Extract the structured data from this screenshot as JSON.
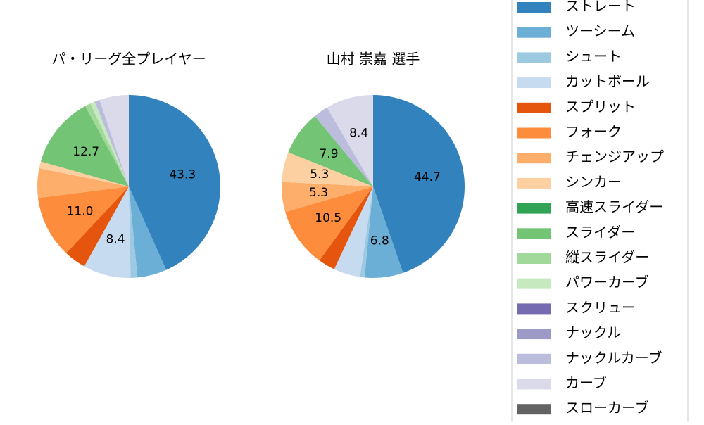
{
  "chart_data": [
    {
      "type": "pie",
      "title": "パ・リーグ全プレイヤー",
      "categories": [
        "ストレート",
        "ツーシーム",
        "シュート",
        "カットボール",
        "スプリット",
        "フォーク",
        "チェンジアップ",
        "シンカー",
        "高速スライダー",
        "スライダー",
        "縦スライダー",
        "パワーカーブ",
        "スクリュー",
        "ナックル",
        "ナックルカーブ",
        "カーブ",
        "スローカーブ"
      ],
      "colors": [
        "#3182bd",
        "#6baed6",
        "#9ecae1",
        "#c6dbef",
        "#e6550d",
        "#fd8d3c",
        "#fdae6b",
        "#fdd0a2",
        "#31a354",
        "#74c476",
        "#a1d99b",
        "#c7e9c0",
        "#756bb1",
        "#9e9ac8",
        "#bcbddc",
        "#dadaeb",
        "#636363"
      ],
      "values": [
        43.3,
        5.2,
        1.2,
        8.4,
        3.9,
        11.0,
        5.2,
        1.2,
        0,
        12.7,
        1.0,
        0.8,
        0,
        0,
        0.9,
        5.2,
        0
      ],
      "value_labels": [
        "43.3",
        null,
        null,
        "8.4",
        null,
        "11.0",
        null,
        null,
        null,
        "12.7",
        null,
        null,
        null,
        null,
        null,
        null,
        null
      ]
    },
    {
      "type": "pie",
      "title": "山村 崇嘉  選手",
      "categories": [
        "ストレート",
        "ツーシーム",
        "シュート",
        "カットボール",
        "スプリット",
        "フォーク",
        "チェンジアップ",
        "シンカー",
        "高速スライダー",
        "スライダー",
        "縦スライダー",
        "パワーカーブ",
        "スクリュー",
        "ナックル",
        "ナックルカーブ",
        "カーブ",
        "スローカーブ"
      ],
      "colors": [
        "#3182bd",
        "#6baed6",
        "#9ecae1",
        "#c6dbef",
        "#e6550d",
        "#fd8d3c",
        "#fdae6b",
        "#fdd0a2",
        "#31a354",
        "#74c476",
        "#a1d99b",
        "#c7e9c0",
        "#756bb1",
        "#9e9ac8",
        "#bcbddc",
        "#dadaeb",
        "#636363"
      ],
      "values": [
        44.7,
        6.8,
        0.8,
        4.7,
        3.0,
        10.5,
        5.3,
        5.3,
        0,
        7.9,
        0,
        0,
        0,
        0,
        2.6,
        8.4,
        0
      ],
      "value_labels": [
        "44.7",
        "6.8",
        null,
        null,
        null,
        "10.5",
        "5.3",
        "5.3",
        null,
        "7.9",
        null,
        null,
        null,
        null,
        null,
        "8.4",
        null
      ]
    }
  ]
}
